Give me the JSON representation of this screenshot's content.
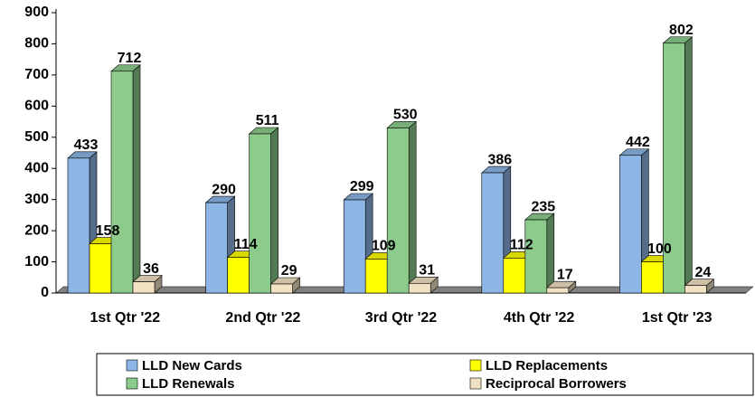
{
  "chart_data": {
    "type": "bar3d",
    "categories": [
      "1st Qtr '22",
      "2nd Qtr '22",
      "3rd Qtr '22",
      "4th Qtr '22",
      "1st Qtr '23"
    ],
    "series": [
      {
        "name": "LLD New Cards",
        "color": "#8db6e6",
        "values": [
          433,
          290,
          299,
          386,
          442
        ]
      },
      {
        "name": "LLD Replacements",
        "color": "#ffff00",
        "values": [
          158,
          114,
          109,
          112,
          100
        ]
      },
      {
        "name": "LLD Renewals",
        "color": "#8ccb8c",
        "values": [
          712,
          511,
          530,
          235,
          802
        ]
      },
      {
        "name": "Reciprocal Borrowers",
        "color": "#f2e2c4",
        "values": [
          36,
          29,
          31,
          17,
          24
        ]
      }
    ],
    "ylim": [
      0,
      900
    ],
    "yticks": [
      0,
      100,
      200,
      300,
      400,
      500,
      600,
      700,
      800,
      900
    ]
  }
}
